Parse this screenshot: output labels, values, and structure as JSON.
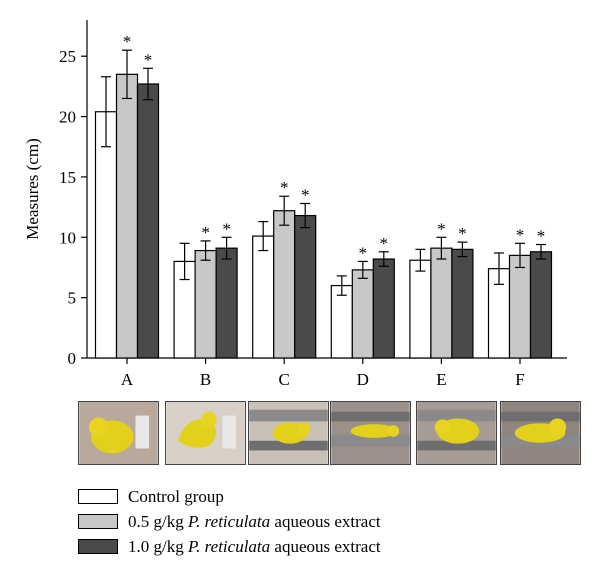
{
  "chart_data": {
    "type": "bar",
    "categories": [
      "A",
      "B",
      "C",
      "D",
      "E",
      "F"
    ],
    "ylabel": "Measures (cm)",
    "xlabel": "",
    "ylim": [
      0,
      28
    ],
    "yticks": [
      0,
      5,
      10,
      15,
      20,
      25
    ],
    "significance_marker": "*",
    "series": [
      {
        "name": "Control group",
        "color": "#ffffff",
        "values": [
          20.4,
          8.0,
          10.1,
          6.0,
          8.1,
          7.4
        ],
        "errors": [
          2.9,
          1.5,
          1.2,
          0.8,
          0.9,
          1.3
        ],
        "significant": [
          false,
          false,
          false,
          false,
          false,
          false
        ]
      },
      {
        "name": "0.5 g/kg P. reticulata aqueous extract",
        "color": "#c8c8c8",
        "values": [
          23.5,
          8.9,
          12.2,
          7.3,
          9.1,
          8.5
        ],
        "errors": [
          2.0,
          0.8,
          1.2,
          0.7,
          0.9,
          1.0
        ],
        "significant": [
          true,
          true,
          true,
          true,
          true,
          true
        ]
      },
      {
        "name": "1.0 g/kg P. reticulata aqueous extract",
        "color": "#4a4a4a",
        "values": [
          22.7,
          9.1,
          11.8,
          8.2,
          9.0,
          8.8
        ],
        "errors": [
          1.3,
          0.9,
          1.0,
          0.6,
          0.6,
          0.6
        ],
        "significant": [
          true,
          true,
          true,
          true,
          true,
          true
        ]
      }
    ]
  },
  "legend": {
    "items": [
      {
        "prefix": "Control group",
        "italic": "",
        "suffix": ""
      },
      {
        "prefix": "0.5 g/kg ",
        "italic": "P. reticulata",
        "suffix": " aqueous extract"
      },
      {
        "prefix": "1.0 g/kg ",
        "italic": "P. reticulata",
        "suffix": " aqueous extract"
      }
    ]
  },
  "photos": [
    {
      "depicts": "fetus-whole-body-measurement"
    },
    {
      "depicts": "fetus-curled-measurement"
    },
    {
      "depicts": "fetus-head-tail-measurement"
    },
    {
      "depicts": "fetus-caliper-length-measurement"
    },
    {
      "depicts": "fetus-caliper-width-measurement"
    },
    {
      "depicts": "fetus-caliper-head-measurement"
    }
  ]
}
